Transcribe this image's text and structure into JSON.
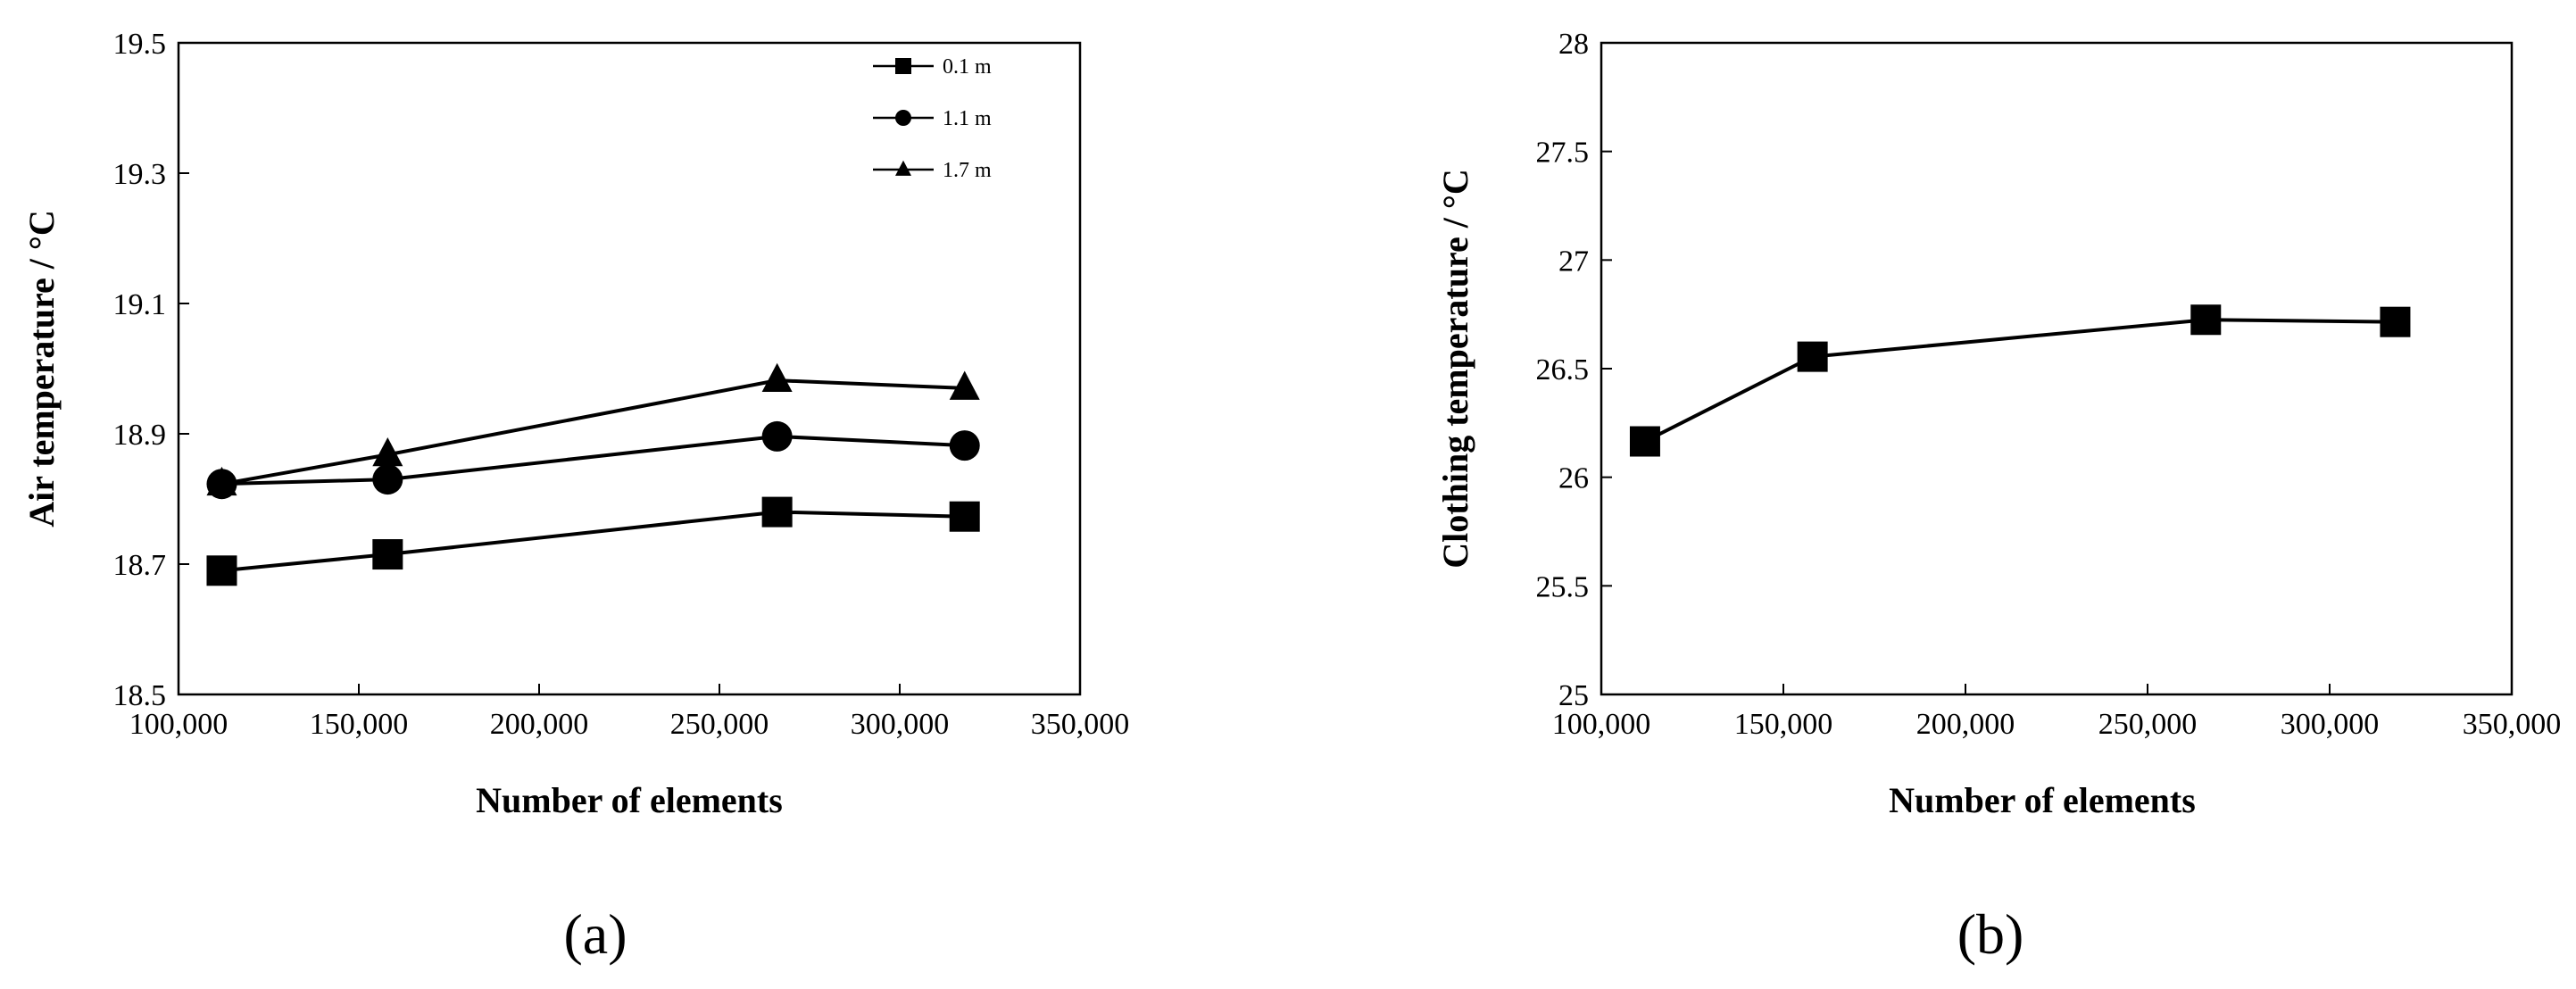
{
  "panels": [
    {
      "label": "(a)",
      "chart_data": {
        "type": "line",
        "xlabel": "Number of  elements",
        "ylabel": "Air temperature / °C",
        "xlim": [
          100000,
          350000
        ],
        "ylim": [
          18.5,
          19.5
        ],
        "x_ticks": [
          100000,
          150000,
          200000,
          250000,
          300000,
          350000
        ],
        "y_ticks": [
          18.5,
          18.7,
          18.9,
          19.1,
          19.3,
          19.5
        ],
        "x_tick_labels": [
          "100,000",
          "150,000",
          "200,000",
          "250,000",
          "300,000",
          "350,000"
        ],
        "y_tick_labels": [
          "18.5",
          "18.7",
          "18.9",
          "19.1",
          "19.3",
          "19.5"
        ],
        "x": [
          112000,
          158000,
          266000,
          318000
        ],
        "legend_position": "top-right",
        "grid": false,
        "series": [
          {
            "name": "0.1 m",
            "marker": "square",
            "values": [
              18.69,
              18.715,
              18.78,
              18.773
            ]
          },
          {
            "name": "1.1 m",
            "marker": "circle",
            "values": [
              18.823,
              18.83,
              18.896,
              18.882
            ]
          },
          {
            "name": "1.7 m",
            "marker": "triangle",
            "values": [
              18.823,
              18.868,
              18.982,
              18.97
            ]
          }
        ]
      }
    },
    {
      "label": "(b)",
      "chart_data": {
        "type": "line",
        "xlabel": "Number of  elements",
        "ylabel": "Clothing temperature / °C",
        "xlim": [
          100000,
          350000
        ],
        "ylim": [
          25,
          28
        ],
        "x_ticks": [
          100000,
          150000,
          200000,
          250000,
          300000,
          350000
        ],
        "y_ticks": [
          25,
          25.5,
          26,
          26.5,
          27,
          27.5,
          28
        ],
        "x_tick_labels": [
          "100,000",
          "150,000",
          "200,000",
          "250,000",
          "300,000",
          "350,000"
        ],
        "y_tick_labels": [
          "25",
          "25.5",
          "26",
          "26.5",
          "27",
          "27.5",
          "28"
        ],
        "x": [
          112000,
          158000,
          266000,
          318000
        ],
        "grid": false,
        "series": [
          {
            "marker": "square",
            "values": [
              26.165,
              26.555,
              26.725,
              26.715
            ]
          }
        ]
      }
    }
  ]
}
